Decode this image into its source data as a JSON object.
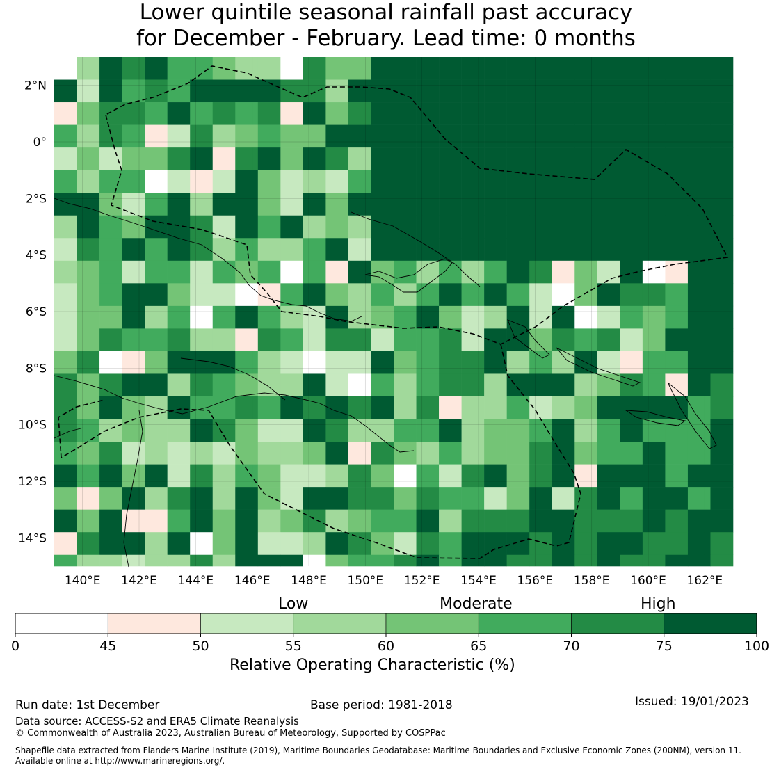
{
  "title": {
    "line1": "Lower quintile seasonal rainfall past accuracy",
    "line2": "for December - February. Lead time: 0 months"
  },
  "map": {
    "lat_ticks": [
      "2°N",
      "0°",
      "2°S",
      "4°S",
      "6°S",
      "8°S",
      "10°S",
      "12°S",
      "14°S"
    ],
    "lon_ticks": [
      "140°E",
      "142°E",
      "144°E",
      "146°E",
      "148°E",
      "150°E",
      "152°E",
      "154°E",
      "156°E",
      "158°E",
      "160°E",
      "162°E"
    ],
    "lat_range": [
      -15,
      3
    ],
    "lon_range": [
      139,
      163
    ],
    "cell_size_deg": 0.8
  },
  "legend": {
    "categories": [
      "Low",
      "Moderate",
      "High"
    ],
    "ticks": [
      "0",
      "45",
      "50",
      "55",
      "60",
      "65",
      "70",
      "75",
      "100"
    ],
    "bins": [
      {
        "from": 0,
        "to": 45,
        "color": "#ffffff"
      },
      {
        "from": 45,
        "to": 50,
        "color": "#fee8de"
      },
      {
        "from": 50,
        "to": 55,
        "color": "#c7e9c0"
      },
      {
        "from": 55,
        "to": 60,
        "color": "#a1d99b"
      },
      {
        "from": 60,
        "to": 65,
        "color": "#74c476"
      },
      {
        "from": 65,
        "to": 70,
        "color": "#41ab5d"
      },
      {
        "from": 70,
        "to": 75,
        "color": "#238b45"
      },
      {
        "from": 75,
        "to": 100,
        "color": "#005a32"
      }
    ],
    "axis_label": "Relative Operating Characteristic (%)"
  },
  "footer": {
    "run_date": "Run date: 1st December",
    "base_period": "Base period: 1981-2018",
    "issued": "Issued: 19/01/2023",
    "data_source": "Data source: ACCESS-S2 and ERA5 Climate Reanalysis",
    "copyright": "© Commonwealth of Australia 2023, Australian Bureau of Meteorology, Supported by COSPPac",
    "shapefile_line1": "Shapefile data extracted from Flanders Marine Institute (2019), Maritime Boundaries Geodatabase: Maritime Boundaries and Exclusive Economic Zones (200NM), version 11.",
    "shapefile_line2": "Available online at http://www.marineregions.org/."
  }
}
